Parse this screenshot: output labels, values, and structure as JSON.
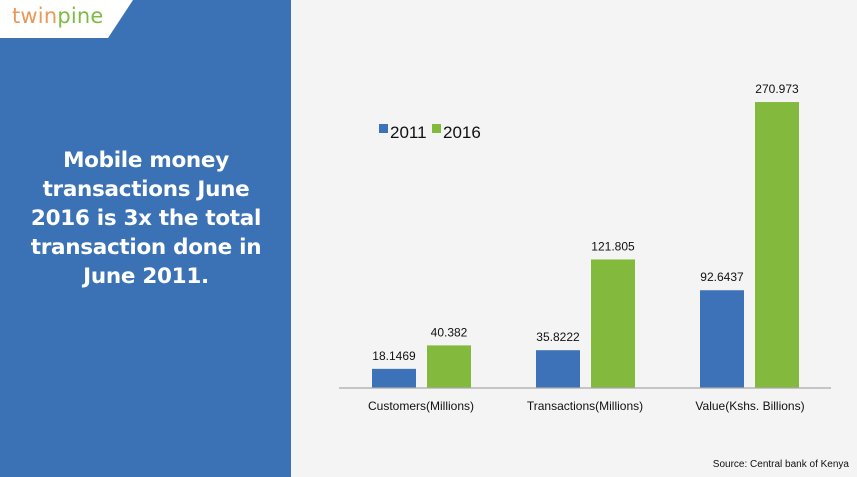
{
  "logo": {
    "part1": "twin",
    "part2": "pine"
  },
  "headline": "Mobile money transactions June 2016 is 3x the total transaction done in June 2011.",
  "headline_lines": [
    "Mobile money",
    "transactions June",
    "2016 is 3x the total",
    "transaction done in",
    "June 2011."
  ],
  "source": "Source: Central bank of Kenya",
  "colors": {
    "panel": "#3b72b5",
    "series_2011": "#3d72b8",
    "series_2016": "#83b93d",
    "axis": "#a9a9a9"
  },
  "chart_data": {
    "type": "bar",
    "title": "",
    "xlabel": "",
    "ylabel": "",
    "ylim": [
      0,
      280
    ],
    "grid": false,
    "legend_position": "top-left",
    "categories": [
      "Customers(Millions)",
      "Transactions(Millions)",
      "Value(Kshs. Billions)"
    ],
    "series": [
      {
        "name": "2011",
        "values": [
          18.1469,
          35.8222,
          92.6437
        ],
        "labels": [
          "18.1469",
          "35.8222",
          "92.6437"
        ]
      },
      {
        "name": "2016",
        "values": [
          40.382,
          121.805,
          270.973
        ],
        "labels": [
          "40.382",
          "121.805",
          "270.973"
        ]
      }
    ]
  }
}
